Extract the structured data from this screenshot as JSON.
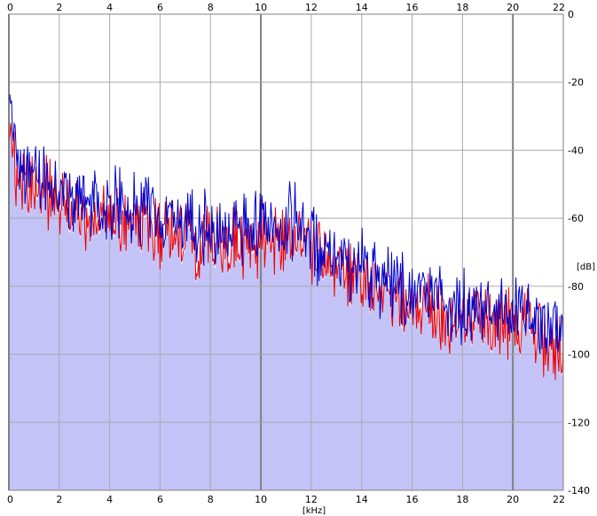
{
  "chart_data": {
    "type": "line",
    "title": "",
    "xlabel": "[kHz]",
    "ylabel": "[dB]",
    "xlim": [
      0,
      22
    ],
    "ylim": [
      -140,
      0
    ],
    "x_ticks": [
      "0",
      "2",
      "4",
      "6",
      "8",
      "10",
      "12",
      "14",
      "16",
      "18",
      "20",
      "22"
    ],
    "y_ticks": [
      "0",
      "-20",
      "-40",
      "-60",
      "-80",
      "-100",
      "-120",
      "-140"
    ],
    "grid": true,
    "colors": {
      "background": "#ffffff",
      "fill": "#c3c3f8",
      "grid": "#a9a9a9",
      "grid_major": "#808080",
      "series_red": "#ee0000",
      "series_blue": "#0000cc"
    },
    "envelope": {
      "x": [
        0,
        0.05,
        0.2,
        0.3,
        0.5,
        0.8,
        1.0,
        1.5,
        2.0,
        2.5,
        3.0,
        3.5,
        4.0,
        4.5,
        5.0,
        5.5,
        6.0,
        6.5,
        7.0,
        7.5,
        8.0,
        8.5,
        9.0,
        9.5,
        10.0,
        10.5,
        11.0,
        11.5,
        12.0,
        12.5,
        13.0,
        13.5,
        14.0,
        14.5,
        15.0,
        15.5,
        16.0,
        16.5,
        17.0,
        17.5,
        18.0,
        18.5,
        19.0,
        19.5,
        20.0,
        20.5,
        21.0,
        21.5,
        22.0
      ],
      "y": [
        -34,
        -22,
        -40,
        -44,
        -42,
        -48,
        -46,
        -48,
        -51,
        -52,
        -55,
        -55,
        -57,
        -57,
        -59,
        -58,
        -60,
        -61,
        -63,
        -63,
        -64,
        -63,
        -64,
        -63,
        -62,
        -62,
        -61,
        -62,
        -65,
        -70,
        -71,
        -72,
        -73,
        -76,
        -78,
        -81,
        -82,
        -83,
        -84,
        -84,
        -85,
        -86,
        -86,
        -87,
        -88,
        -89,
        -90,
        -92,
        -94
      ]
    },
    "series": [
      {
        "color": "red",
        "offset": -4,
        "amplitude": 9
      },
      {
        "color": "blue",
        "offset": 0,
        "amplitude": 9
      }
    ]
  }
}
